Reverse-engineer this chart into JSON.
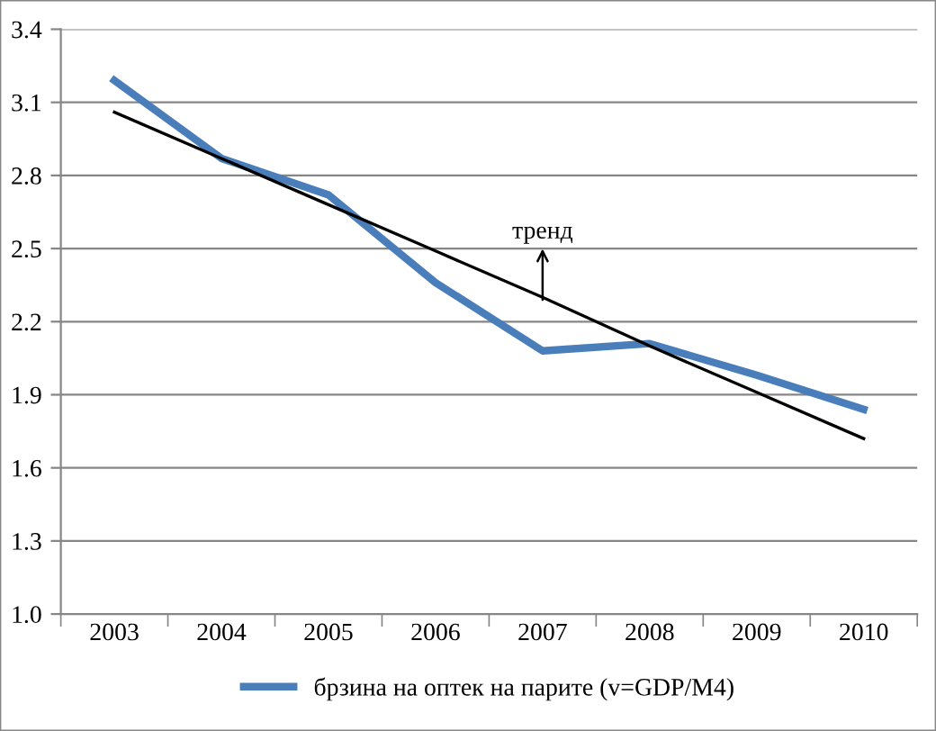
{
  "chart_data": {
    "type": "line",
    "categories": [
      "2003",
      "2004",
      "2005",
      "2006",
      "2007",
      "2008",
      "2009",
      "2010"
    ],
    "series": [
      {
        "name": "брзина на оптек на парите (v=GDP/M4)",
        "color": "#4a7ebb",
        "values": [
          3.19,
          2.87,
          2.72,
          2.36,
          2.08,
          2.11,
          1.98,
          1.84
        ]
      },
      {
        "type": "line",
        "color": "#000000",
        "values": [
          3.06,
          2.87,
          2.68,
          2.49,
          2.3,
          2.1,
          1.91,
          1.72
        ]
      }
    ],
    "ylim": [
      1.0,
      3.4
    ],
    "yticks": [
      {
        "value": 1.0,
        "label": "1.0"
      },
      {
        "value": 1.3,
        "label": "1.3"
      },
      {
        "value": 1.6,
        "label": "1.6"
      },
      {
        "value": 1.9,
        "label": "1.9"
      },
      {
        "value": 2.2,
        "label": "2.2"
      },
      {
        "value": 2.5,
        "label": "2.5"
      },
      {
        "value": 2.8,
        "label": "2.8"
      },
      {
        "value": 3.1,
        "label": "3.1"
      },
      {
        "value": 3.4,
        "label": "3.4"
      }
    ],
    "grid": "y",
    "legend": "bottom",
    "annotations": [
      {
        "text": "тренд",
        "x": "2007",
        "y": 2.29
      }
    ]
  }
}
